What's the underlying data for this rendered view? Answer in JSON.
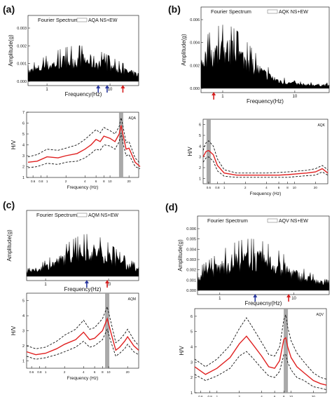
{
  "chart_data": [
    {
      "panel": "(a)",
      "spectrum": {
        "type": "area",
        "title": "Fourier Spectrum",
        "legend": "AQA NS+EW",
        "xlabel": "Frequency(Hz)",
        "ylabel": "Amplitude(g)",
        "x_tick_labels": [
          "1",
          "10"
        ],
        "y_tick_labels": [
          "0.000",
          "0.001",
          "0.002",
          "0.003"
        ],
        "ylim": [
          0,
          0.0033
        ],
        "x_scale": "log",
        "xlim": [
          0.5,
          30
        ],
        "arrows": [
          {
            "x": 6.5,
            "color": "#2b3aa0"
          },
          {
            "x": 9.0,
            "color": "#2b3aa0"
          },
          {
            "x": 16.0,
            "color": "#d62020"
          }
        ]
      },
      "hv": {
        "type": "line",
        "legend": "AQA",
        "xlabel": "Frequency (Hz)",
        "ylabel": "H/V",
        "x_tick_labels": [
          "0.6",
          "0.8",
          "1",
          "2",
          "4",
          "6",
          "8",
          "10",
          "20"
        ],
        "x_ticks": [
          0.6,
          0.8,
          1,
          2,
          4,
          6,
          8,
          10,
          20
        ],
        "y_ticks": [
          1,
          2,
          3,
          4,
          5,
          6,
          7
        ],
        "ylim": [
          1,
          7
        ],
        "xlim": [
          0.5,
          30
        ],
        "x_scale": "log",
        "peak_band": 15,
        "x": [
          0.5,
          0.7,
          1,
          1.5,
          2,
          3,
          4,
          5,
          6,
          7,
          8,
          10,
          12,
          14,
          15,
          16,
          18,
          20,
          25,
          30
        ],
        "mean": [
          2.4,
          2.5,
          2.9,
          2.8,
          3.0,
          3.2,
          3.6,
          4.0,
          4.5,
          4.3,
          4.8,
          4.6,
          4.3,
          5.0,
          5.8,
          5.0,
          3.6,
          3.7,
          2.4,
          2.0
        ],
        "upper": [
          2.9,
          3.1,
          3.6,
          3.5,
          3.7,
          4.0,
          4.5,
          5.0,
          5.4,
          5.1,
          5.6,
          5.3,
          5.0,
          5.7,
          6.5,
          5.8,
          4.2,
          4.3,
          2.8,
          2.3
        ],
        "lower": [
          1.9,
          2.0,
          2.3,
          2.2,
          2.4,
          2.5,
          2.8,
          3.2,
          3.6,
          3.5,
          4.0,
          3.9,
          3.6,
          4.3,
          5.1,
          4.2,
          3.0,
          3.1,
          2.0,
          1.8
        ]
      }
    },
    {
      "panel": "(b)",
      "spectrum": {
        "type": "area",
        "title": "Fourier Spectrum",
        "legend": "AQK NS+EW",
        "xlabel": "Frequency(Hz)",
        "ylabel": "Amplitude(g)",
        "x_tick_labels": [
          "1",
          "10"
        ],
        "y_tick_labels": [
          "0.000",
          "0.002",
          "0.004",
          "0.006"
        ],
        "ylim": [
          0,
          0.006
        ],
        "x_scale": "log",
        "xlim": [
          0.5,
          30
        ],
        "arrows": [
          {
            "x": 0.75,
            "color": "#d62020"
          }
        ]
      },
      "hv": {
        "type": "line",
        "legend": "AQK",
        "xlabel": "Frequency (Hz)",
        "ylabel": "H/V",
        "x_tick_labels": [
          "0.6",
          "0.8",
          "1",
          "2",
          "4",
          "6",
          "8",
          "10",
          "20"
        ],
        "x_ticks": [
          0.6,
          0.8,
          1,
          2,
          4,
          6,
          8,
          10,
          20
        ],
        "y_ticks": [
          1,
          2,
          3,
          4,
          5,
          6
        ],
        "ylim": [
          0.5,
          6.5
        ],
        "xlim": [
          0.5,
          30
        ],
        "x_scale": "log",
        "peak_band": 0.6,
        "x": [
          0.5,
          0.55,
          0.6,
          0.7,
          0.8,
          1,
          1.5,
          2,
          3,
          4,
          6,
          8,
          10,
          12,
          15,
          20,
          25,
          30
        ],
        "mean": [
          3.0,
          3.5,
          3.6,
          3.2,
          2.2,
          1.5,
          1.3,
          1.3,
          1.3,
          1.3,
          1.3,
          1.35,
          1.4,
          1.45,
          1.5,
          1.6,
          1.9,
          1.5
        ],
        "upper": [
          3.6,
          4.3,
          4.5,
          4.0,
          2.8,
          1.8,
          1.5,
          1.5,
          1.5,
          1.5,
          1.55,
          1.6,
          1.65,
          1.7,
          1.75,
          1.9,
          2.2,
          1.8
        ],
        "lower": [
          2.5,
          2.9,
          3.0,
          2.6,
          1.7,
          1.2,
          1.1,
          1.1,
          1.1,
          1.1,
          1.1,
          1.1,
          1.15,
          1.2,
          1.25,
          1.3,
          1.6,
          1.3
        ]
      }
    },
    {
      "panel": "(c)",
      "spectrum": {
        "type": "area",
        "title": "Fourier Spectrum",
        "legend": "AQM NS+EW",
        "xlabel": "Frequency(Hz)",
        "ylabel": "Amplitude(g)",
        "x_tick_labels": [
          "1",
          "10"
        ],
        "y_tick_labels": [],
        "ylim": [
          0,
          1
        ],
        "x_scale": "log",
        "xlim": [
          0.5,
          30
        ],
        "arrows": [
          {
            "x": 4.5,
            "color": "#2b3aa0"
          },
          {
            "x": 9.5,
            "color": "#d62020"
          }
        ]
      },
      "hv": {
        "type": "line",
        "legend": "AQM",
        "xlabel": "Frequency (Hz)",
        "ylabel": "H/V",
        "x_tick_labels": [
          "0.6",
          "0.8",
          "1",
          "2",
          "4",
          "6",
          "8",
          "10",
          "20"
        ],
        "x_ticks": [
          0.6,
          0.8,
          1,
          2,
          4,
          6,
          8,
          10,
          20
        ],
        "y_ticks": [
          1,
          2,
          3,
          4,
          5
        ],
        "ylim": [
          0.5,
          5.5
        ],
        "xlim": [
          0.5,
          30
        ],
        "x_scale": "log",
        "peak_band": 9.5,
        "x": [
          0.5,
          0.7,
          1,
          1.5,
          2,
          3,
          4,
          5,
          6,
          8,
          9.5,
          11,
          13,
          15,
          18,
          20,
          25,
          30
        ],
        "mean": [
          1.6,
          1.4,
          1.5,
          1.8,
          2.1,
          2.4,
          2.9,
          2.4,
          2.5,
          3.0,
          3.8,
          2.8,
          1.7,
          1.9,
          2.3,
          2.6,
          2.0,
          1.7
        ],
        "upper": [
          2.0,
          1.8,
          1.9,
          2.3,
          2.7,
          3.1,
          3.7,
          3.1,
          3.2,
          3.8,
          4.6,
          3.5,
          2.2,
          2.4,
          2.8,
          3.1,
          2.4,
          2.0
        ],
        "lower": [
          1.3,
          1.1,
          1.2,
          1.4,
          1.6,
          1.9,
          2.3,
          1.9,
          2.0,
          2.4,
          3.1,
          2.2,
          1.3,
          1.5,
          1.8,
          2.1,
          1.6,
          1.4
        ]
      }
    },
    {
      "panel": "(d)",
      "spectrum": {
        "type": "area",
        "title": "Fourier Spectrum",
        "legend": "AQV NS+EW",
        "xlabel": "Frequecny(Hz)",
        "ylabel": "Amplitude(g)",
        "x_tick_labels": [
          "1",
          "10"
        ],
        "y_tick_labels": [
          "0.000",
          "0.001",
          "0.002",
          "0.003",
          "0.004",
          "0.005",
          "0.006"
        ],
        "ylim": [
          0,
          0.0065
        ],
        "x_scale": "log",
        "xlim": [
          0.5,
          30
        ],
        "arrows": [
          {
            "x": 3.0,
            "color": "#2b3aa0"
          },
          {
            "x": 8.5,
            "color": "#d62020"
          }
        ]
      },
      "hv": {
        "type": "line",
        "legend": "AQV",
        "xlabel": "Frequency (Hz)",
        "ylabel": "H/V",
        "x_tick_labels": [
          "0.6",
          "0.8",
          "1",
          "2",
          "4",
          "6",
          "8",
          "10",
          "20"
        ],
        "x_ticks": [
          0.6,
          0.8,
          1,
          2,
          4,
          6,
          8,
          10,
          20
        ],
        "y_ticks": [
          1,
          2,
          3,
          4,
          5,
          6
        ],
        "ylim": [
          1,
          6.5
        ],
        "xlim": [
          0.5,
          30
        ],
        "x_scale": "log",
        "peak_band": 8.5,
        "x": [
          0.5,
          0.7,
          1,
          1.5,
          2,
          2.5,
          3,
          4,
          5,
          6,
          7,
          8,
          8.5,
          9,
          10,
          12,
          15,
          20,
          25,
          30
        ],
        "mean": [
          2.7,
          2.2,
          2.6,
          3.3,
          4.2,
          4.7,
          4.2,
          3.4,
          2.7,
          2.6,
          3.1,
          4.5,
          4.6,
          4.0,
          3.3,
          2.7,
          2.3,
          1.8,
          1.6,
          1.5
        ],
        "upper": [
          3.2,
          2.7,
          3.2,
          4.1,
          5.2,
          5.9,
          5.3,
          4.3,
          3.5,
          3.4,
          4.0,
          5.8,
          6.1,
          5.3,
          4.4,
          3.6,
          3.0,
          2.3,
          2.0,
          1.9
        ],
        "lower": [
          2.2,
          1.8,
          2.1,
          2.6,
          3.4,
          3.7,
          3.3,
          2.6,
          2.1,
          2.0,
          2.4,
          3.5,
          3.5,
          3.0,
          2.5,
          2.0,
          1.8,
          1.4,
          1.3,
          1.2
        ]
      }
    }
  ]
}
